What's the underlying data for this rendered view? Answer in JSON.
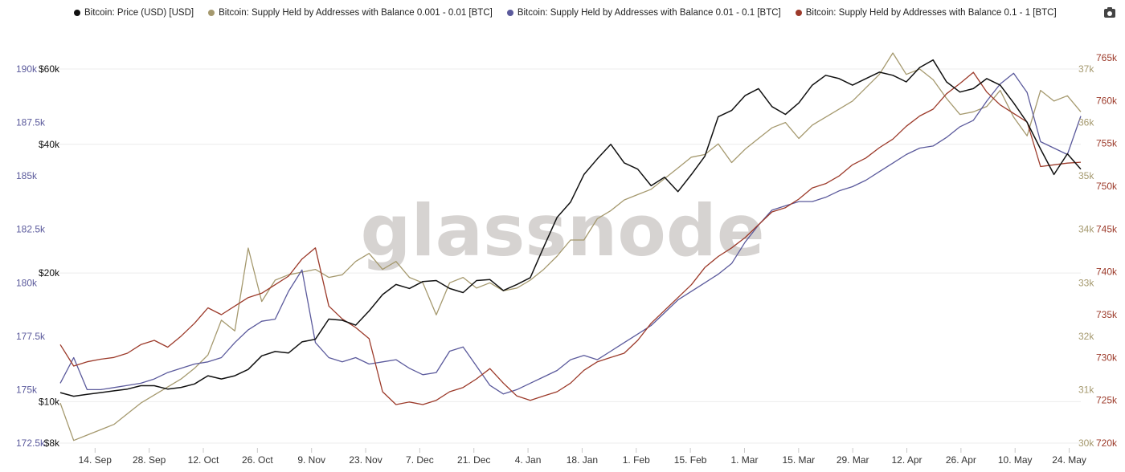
{
  "chart_data": {
    "type": "line",
    "watermark": "glassnode",
    "x_ticks": [
      "14. Sep",
      "28. Sep",
      "12. Oct",
      "26. Oct",
      "9. Nov",
      "23. Nov",
      "7. Dec",
      "21. Dec",
      "4. Jan",
      "18. Jan",
      "1. Feb",
      "15. Feb",
      "1. Mar",
      "15. Mar",
      "29. Mar",
      "12. Apr",
      "26. Apr",
      "10. May",
      "24. May"
    ],
    "x_start": "2020-09-05",
    "x_end": "2021-05-27",
    "axes": {
      "supply_001_01": {
        "ticks": [
          "172.5k",
          "175k",
          "177.5k",
          "180k",
          "182.5k",
          "185k",
          "187.5k",
          "190k"
        ],
        "range": [
          172500,
          190000
        ],
        "color": "#5b5a9c"
      },
      "price": {
        "scale": "log",
        "ticks": [
          "$8k",
          "$10k",
          "$20k",
          "$40k",
          "$60k"
        ],
        "range": [
          8000,
          60000
        ],
        "color": "#111111"
      },
      "supply_0001_001": {
        "ticks": [
          "30k",
          "31k",
          "32k",
          "33k",
          "34k",
          "35k",
          "36k",
          "37k"
        ],
        "range": [
          30000,
          37000
        ],
        "color": "#a5996e"
      },
      "supply_01_1": {
        "ticks": [
          "720k",
          "725k",
          "730k",
          "735k",
          "740k",
          "745k",
          "750k",
          "755k",
          "760k",
          "765k"
        ],
        "range": [
          720000,
          765000
        ],
        "color": "#9c3a2a"
      }
    },
    "series": [
      {
        "name": "Bitcoin: Price (USD) [USD]",
        "axis": "price",
        "color": "#111111",
        "values": [
          10500,
          10300,
          10400,
          10500,
          10600,
          10700,
          10900,
          10900,
          10700,
          10800,
          11000,
          11500,
          11300,
          11500,
          11900,
          12800,
          13100,
          13000,
          13800,
          14000,
          15600,
          15500,
          15100,
          16300,
          17800,
          18800,
          18400,
          19100,
          19200,
          18400,
          18000,
          19200,
          19300,
          18200,
          18800,
          19500,
          23000,
          27000,
          29300,
          34000,
          37000,
          40000,
          36200,
          35000,
          32000,
          33500,
          31000,
          34000,
          37500,
          46400,
          48000,
          52000,
          54000,
          49000,
          47000,
          50000,
          55000,
          58000,
          57000,
          55000,
          57000,
          59000,
          58000,
          56000,
          60500,
          63000,
          56000,
          53000,
          54000,
          57000,
          55000,
          50000,
          45000,
          39000,
          34000,
          38000,
          35000
        ]
      },
      {
        "name": "Bitcoin: Supply Held by Addresses with Balance 0.001 - 0.01 [BTC]",
        "axis": "supply_0001_001",
        "color": "#a5996e",
        "values": [
          30750,
          30050,
          30150,
          30250,
          30350,
          30550,
          30750,
          30900,
          31050,
          31200,
          31400,
          31650,
          32300,
          32100,
          33650,
          32650,
          33050,
          33150,
          33200,
          33250,
          33100,
          33150,
          33400,
          33550,
          33250,
          33400,
          33100,
          33000,
          32400,
          33000,
          33100,
          32900,
          33000,
          32850,
          32900,
          33050,
          33250,
          33500,
          33800,
          33800,
          34200,
          34350,
          34550,
          34650,
          34750,
          34950,
          35150,
          35350,
          35400,
          35600,
          35250,
          35500,
          35700,
          35900,
          36000,
          35700,
          35950,
          36100,
          36250,
          36400,
          36650,
          36900,
          37300,
          36900,
          37000,
          36800,
          36450,
          36150,
          36200,
          36300,
          36600,
          36100,
          35750,
          36600,
          36400,
          36500,
          36200
        ]
      },
      {
        "name": "Bitcoin: Supply Held by Addresses with Balance 0.01 - 0.1 [BTC]",
        "axis": "supply_001_01",
        "color": "#5b5a9c",
        "values": [
          175300,
          176500,
          175000,
          175000,
          175100,
          175200,
          175300,
          175500,
          175800,
          176000,
          176200,
          176300,
          176500,
          177200,
          177800,
          178200,
          178300,
          179600,
          180600,
          177200,
          176500,
          176300,
          176500,
          176200,
          176300,
          176400,
          176000,
          175700,
          175800,
          176800,
          177000,
          176100,
          175200,
          174800,
          175000,
          175300,
          175600,
          175900,
          176400,
          176600,
          176400,
          176800,
          177200,
          177600,
          178000,
          178600,
          179200,
          179600,
          180000,
          180400,
          180900,
          181900,
          182700,
          183400,
          183600,
          183800,
          183800,
          184000,
          184300,
          184500,
          184800,
          185200,
          185600,
          186000,
          186300,
          186400,
          186800,
          187300,
          187600,
          188500,
          189300,
          189800,
          188900,
          186600,
          186300,
          186000,
          187800
        ]
      },
      {
        "name": "Bitcoin: Supply Held by Addresses with Balance 0.1 - 1 [BTC]",
        "axis": "supply_01_1",
        "color": "#9c3a2a",
        "values": [
          731500,
          729000,
          729500,
          729800,
          730000,
          730500,
          731500,
          732000,
          731200,
          732500,
          734000,
          735800,
          735000,
          736000,
          737000,
          737500,
          738500,
          739500,
          741500,
          742800,
          736000,
          734500,
          733500,
          732200,
          726000,
          724500,
          724800,
          724500,
          725000,
          726000,
          726500,
          727500,
          728700,
          727000,
          725500,
          725000,
          725500,
          726000,
          727000,
          728500,
          729500,
          730000,
          730500,
          732000,
          734000,
          735500,
          737000,
          738500,
          740500,
          741800,
          742800,
          744000,
          745500,
          747000,
          747500,
          748500,
          749800,
          750300,
          751200,
          752500,
          753300,
          754500,
          755500,
          757000,
          758200,
          759000,
          760800,
          762000,
          763300,
          761000,
          759500,
          758500,
          757500,
          752300,
          752500,
          752700,
          752800
        ]
      }
    ]
  }
}
